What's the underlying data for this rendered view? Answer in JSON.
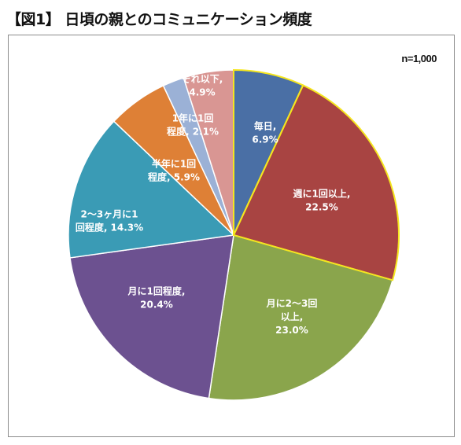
{
  "header": {
    "title": "【図1】 日頃の親とのコミュニケーション頻度"
  },
  "chart_data": {
    "type": "pie",
    "title": "【図1】 日頃の親とのコミュニケーション頻度",
    "note": "n=1,000",
    "start_angle_deg": 0,
    "direction": "clockwise",
    "slices": [
      {
        "label_lines": [
          "毎日,",
          "6.9%"
        ],
        "category": "毎日",
        "value": 6.9,
        "color": "#4a6fa5",
        "highlight": true
      },
      {
        "label_lines": [
          "週に1回以上,",
          "22.5%"
        ],
        "category": "週に1回以上",
        "value": 22.5,
        "color": "#a84442",
        "highlight": true
      },
      {
        "label_lines": [
          "月に2～3回",
          "以上,",
          "23.0%"
        ],
        "category": "月に2～3回以上",
        "value": 23.0,
        "color": "#8aa54c",
        "highlight": false
      },
      {
        "label_lines": [
          "月に1回程度,",
          "20.4%"
        ],
        "category": "月に1回程度",
        "value": 20.4,
        "color": "#6c5190",
        "highlight": false
      },
      {
        "label_lines": [
          "2～3ヶ月に1",
          "回程度, 14.3%"
        ],
        "category": "2～3ヶ月に1回程度",
        "value": 14.3,
        "color": "#3a9bb5",
        "highlight": false
      },
      {
        "label_lines": [
          "半年に1回",
          "程度, 5.9%"
        ],
        "category": "半年に1回程度",
        "value": 5.9,
        "color": "#de8036",
        "highlight": false
      },
      {
        "label_lines": [
          "1年に1回",
          "程度, 2.1%"
        ],
        "category": "1年に1回程度",
        "value": 2.1,
        "color": "#9bb1d6",
        "highlight": false
      },
      {
        "label_lines": [
          "それ以下,",
          "4.9%"
        ],
        "category": "それ以下",
        "value": 4.9,
        "color": "#d99693",
        "highlight": false
      }
    ],
    "legend": "none"
  }
}
